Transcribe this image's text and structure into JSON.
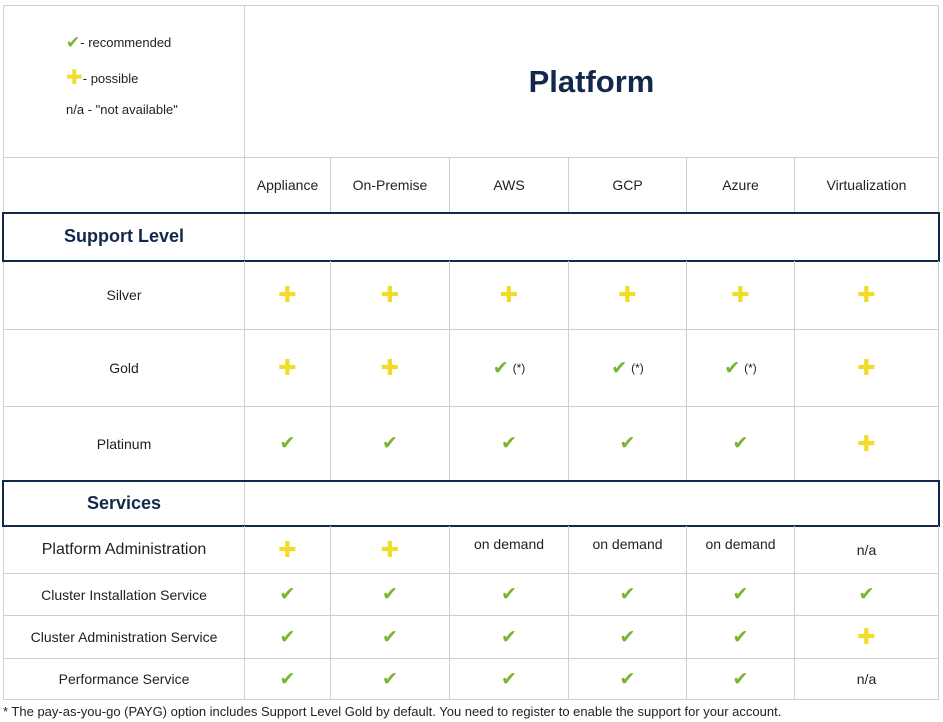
{
  "legend": [
    {
      "symbol": "check",
      "icon": "check-icon",
      "text": "- recommended"
    },
    {
      "symbol": "plus",
      "icon": "plus-icon",
      "text": "- possible"
    },
    {
      "symbol": "na",
      "text": "n/a - \"not available\""
    }
  ],
  "title": "Platform",
  "columns": [
    "Appliance",
    "On-Premise",
    "AWS",
    "GCP",
    "Azure",
    "Virtualization"
  ],
  "symbols": {
    "check": "✔",
    "plus": "✚"
  },
  "sections": [
    {
      "label": "Support Level",
      "rows": [
        {
          "label": "Silver",
          "cells": [
            "plus",
            "plus",
            "plus",
            "plus",
            "plus",
            "plus"
          ]
        },
        {
          "label": "Gold",
          "cells": [
            "plus",
            "plus",
            "check*",
            "check*",
            "check*",
            "plus"
          ]
        },
        {
          "label": "Platinum",
          "cells": [
            "check",
            "check",
            "check",
            "check",
            "check",
            "plus"
          ]
        }
      ]
    },
    {
      "label": "Services",
      "rows": [
        {
          "label": "Platform Administration",
          "cells": [
            "plus",
            "plus",
            "on demand",
            "on demand",
            "on demand",
            "n/a"
          ]
        },
        {
          "label": "Cluster Installation Service",
          "cells": [
            "check",
            "check",
            "check",
            "check",
            "check",
            "check"
          ]
        },
        {
          "label": "Cluster Administration Service",
          "cells": [
            "check",
            "check",
            "check",
            "check",
            "check",
            "plus"
          ]
        },
        {
          "label": "Performance Service",
          "cells": [
            "check",
            "check",
            "check",
            "check",
            "check",
            "n/a"
          ]
        }
      ]
    }
  ],
  "asterisk_note": "(*)",
  "footnote": "* The pay-as-you-go (PAYG) option includes Support Level Gold by default. You need to register to enable the support for your account."
}
